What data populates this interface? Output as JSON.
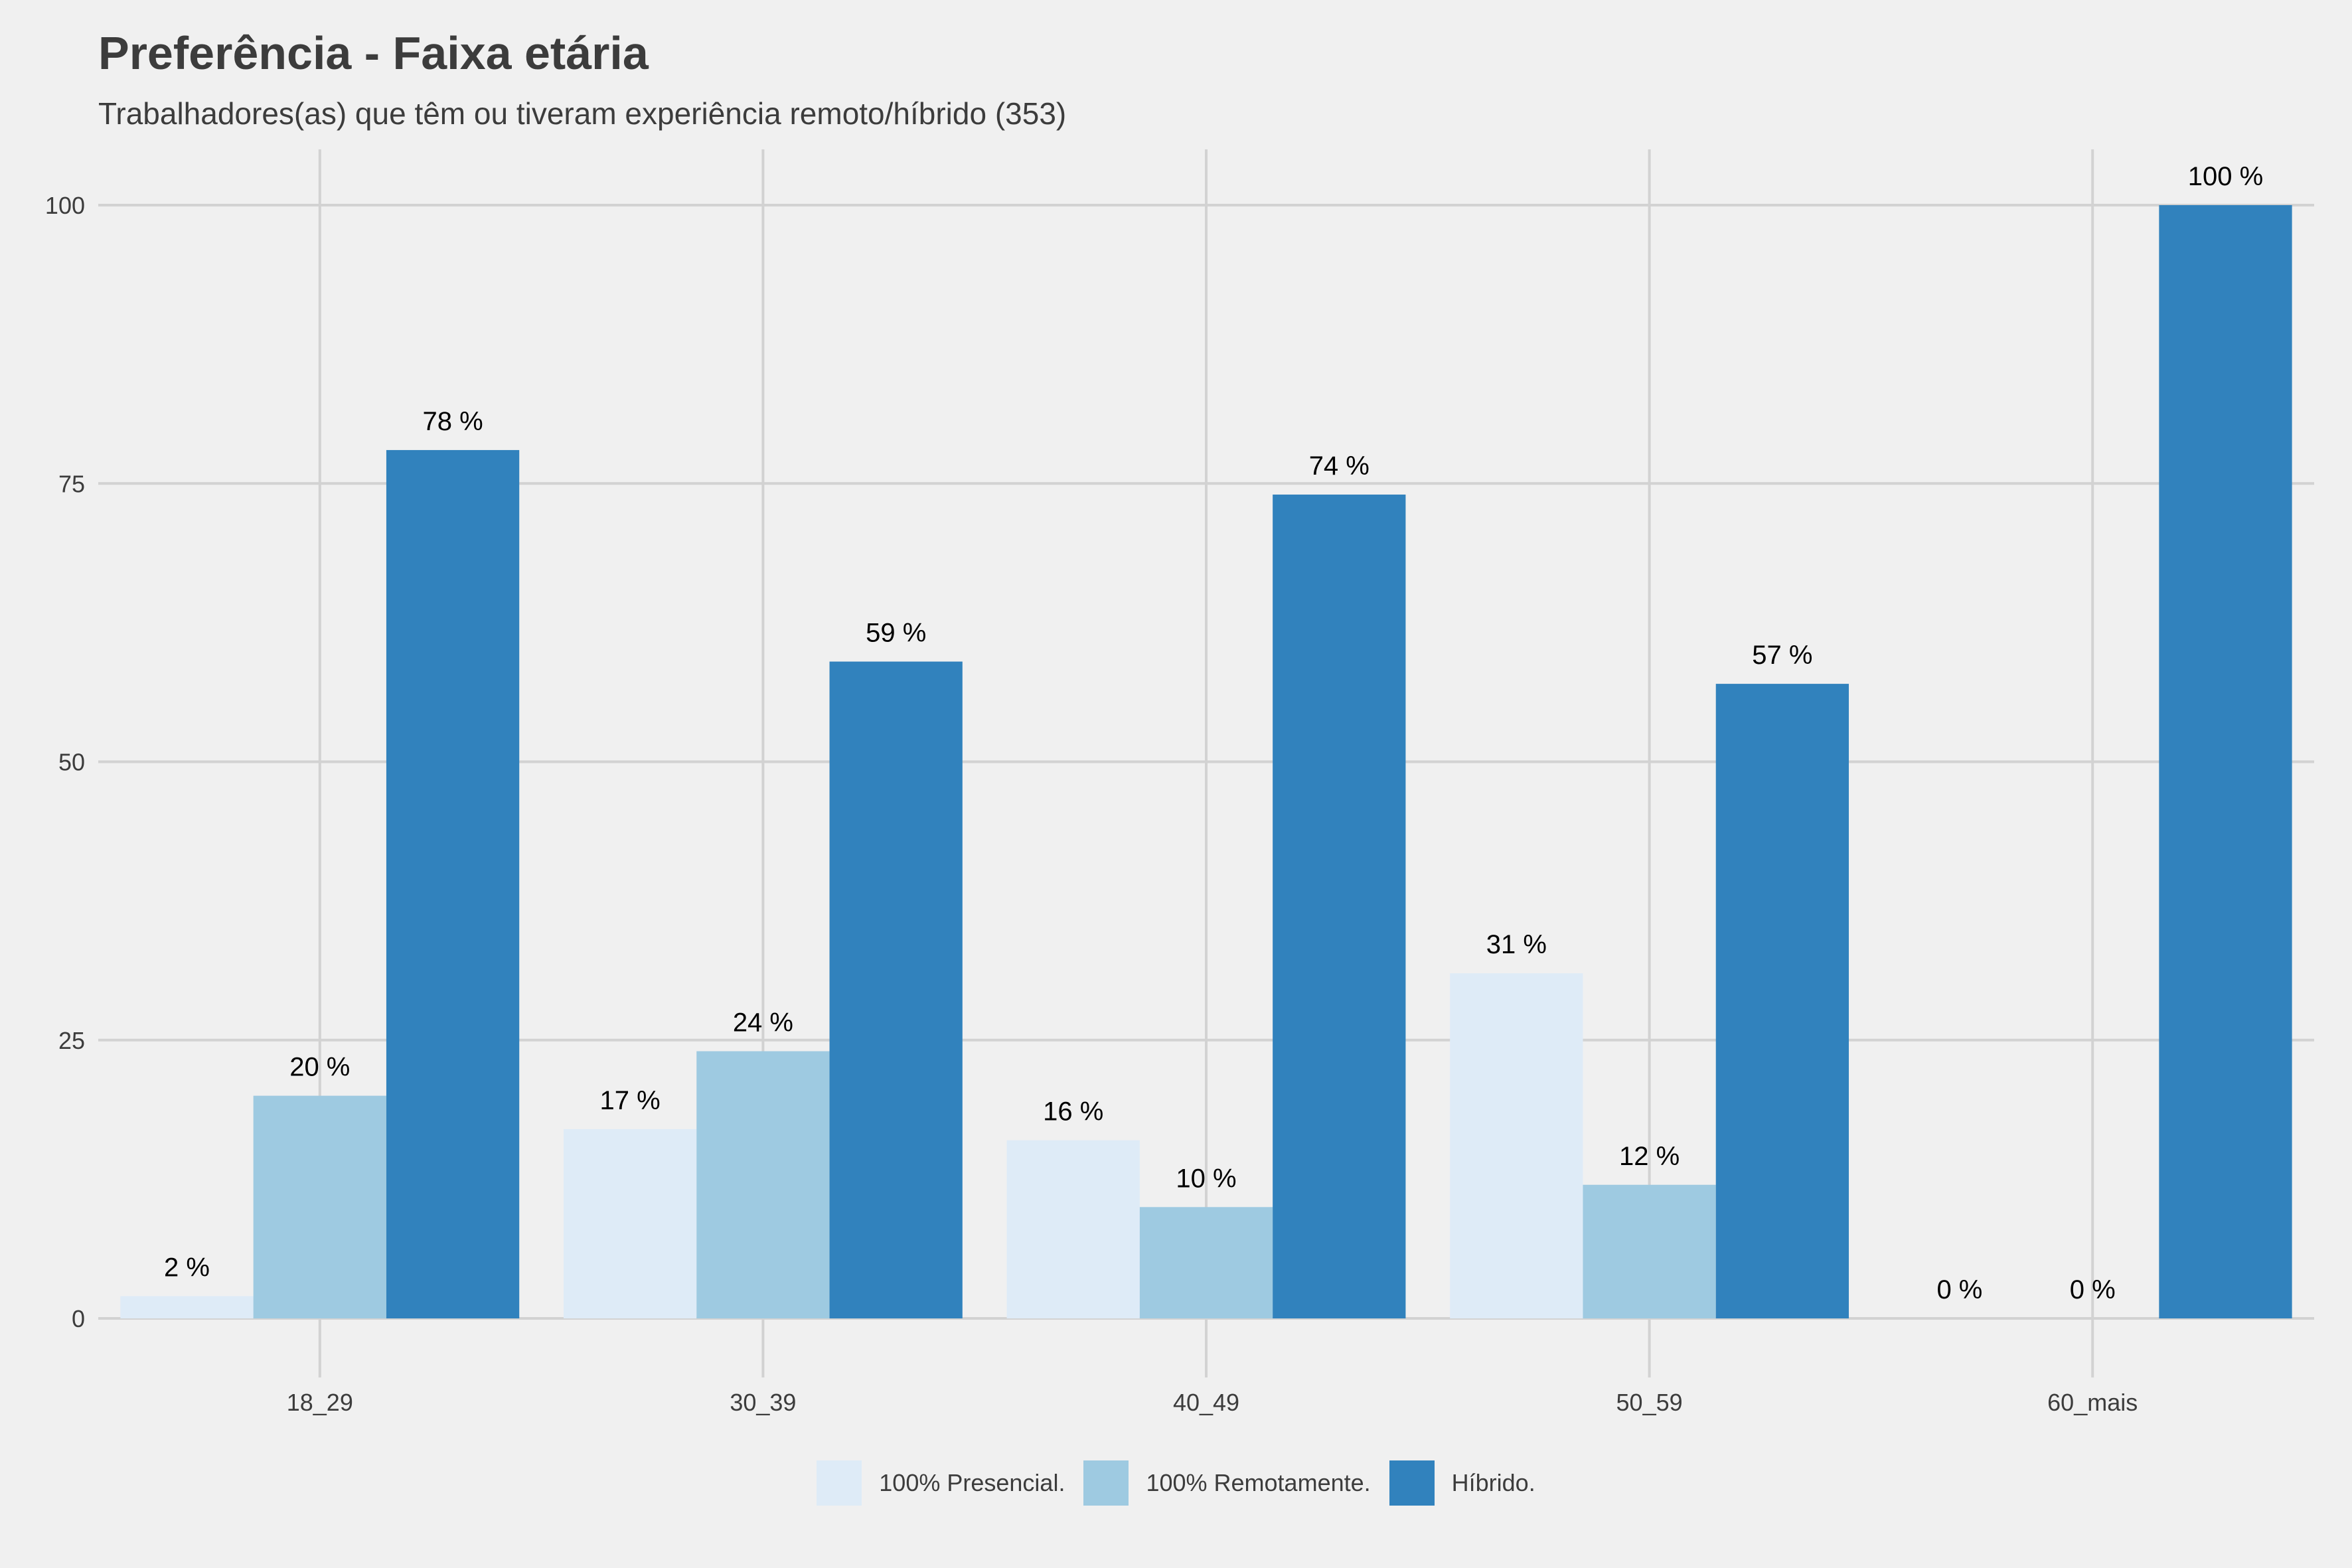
{
  "chart_data": {
    "type": "bar",
    "title": "Preferência - Faixa etária",
    "subtitle": "Trabalhadores(as) que têm ou tiveram experiência remoto/híbrido (353)",
    "xlabel": "",
    "ylabel": "",
    "categories": [
      "18_29",
      "30_39",
      "40_49",
      "50_59",
      "60_mais"
    ],
    "series": [
      {
        "name": "100% Presencial.",
        "color": "#deebf7",
        "values": [
          2,
          17,
          16,
          31,
          0
        ],
        "labels": [
          "2 %",
          "17 %",
          "16 %",
          "31 %",
          "0 %"
        ]
      },
      {
        "name": "100% Remotamente.",
        "color": "#9ecae1",
        "values": [
          20,
          24,
          10,
          12,
          0
        ],
        "labels": [
          "20 %",
          "24 %",
          "10 %",
          "12 %",
          "0 %"
        ]
      },
      {
        "name": "Híbrido.",
        "color": "#3182bd",
        "values": [
          78,
          59,
          74,
          57,
          100
        ],
        "labels": [
          "78 %",
          "59 %",
          "74 %",
          "57 %",
          "100 %"
        ]
      }
    ],
    "ylim": [
      0,
      105
    ],
    "yticks": [
      0,
      25,
      50,
      75,
      100
    ],
    "grid": true,
    "legend_position": "bottom",
    "colors": {
      "background": "#f0f0f0",
      "grid": "#d2d2d2",
      "text": "#3c3c3c"
    }
  }
}
